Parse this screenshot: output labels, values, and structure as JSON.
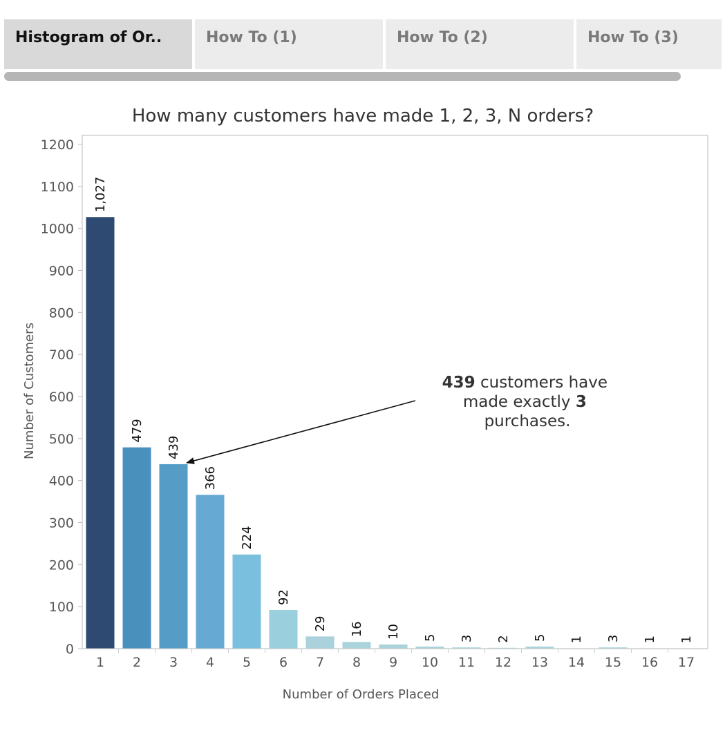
{
  "tabs": [
    {
      "label": "Histogram of Or..",
      "active": true
    },
    {
      "label": "How To (1)",
      "active": false
    },
    {
      "label": "How To (2)",
      "active": false
    },
    {
      "label": "How To (3)",
      "active": false
    }
  ],
  "chart_data": {
    "type": "bar",
    "title": "How many customers have made 1, 2, 3, N orders?",
    "xlabel": "Number of Orders Placed",
    "ylabel": "Number of Customers",
    "categories": [
      "1",
      "2",
      "3",
      "4",
      "5",
      "6",
      "7",
      "8",
      "9",
      "10",
      "11",
      "12",
      "13",
      "14",
      "15",
      "16",
      "17"
    ],
    "values": [
      1027,
      479,
      439,
      366,
      224,
      92,
      29,
      16,
      10,
      5,
      3,
      2,
      5,
      1,
      3,
      1,
      1
    ],
    "data_labels": [
      "1,027",
      "479",
      "439",
      "366",
      "224",
      "92",
      "29",
      "16",
      "10",
      "5",
      "3",
      "2",
      "5",
      "1",
      "3",
      "1",
      "1"
    ],
    "ylim": [
      0,
      1200
    ],
    "yticks": [
      0,
      100,
      200,
      300,
      400,
      500,
      600,
      700,
      800,
      900,
      1000,
      1100,
      1200
    ],
    "colors": [
      "#2e4a72",
      "#4a90bd",
      "#559dc6",
      "#66aad3",
      "#7bbfde",
      "#9ad0de",
      "#a9d2dc",
      "#abd3dc",
      "#abd3dc",
      "#abd3dc",
      "#abd3dc",
      "#abd3dc",
      "#abd3dc",
      "#abd3dc",
      "#abd3dc",
      "#abd3dc",
      "#abd3dc"
    ],
    "annotation": {
      "target_category": "3",
      "line1_bold": "439",
      "line1_rest": " customers have",
      "line2_text": "made exactly ",
      "line2_bold": "3",
      "line3": "purchases."
    }
  }
}
